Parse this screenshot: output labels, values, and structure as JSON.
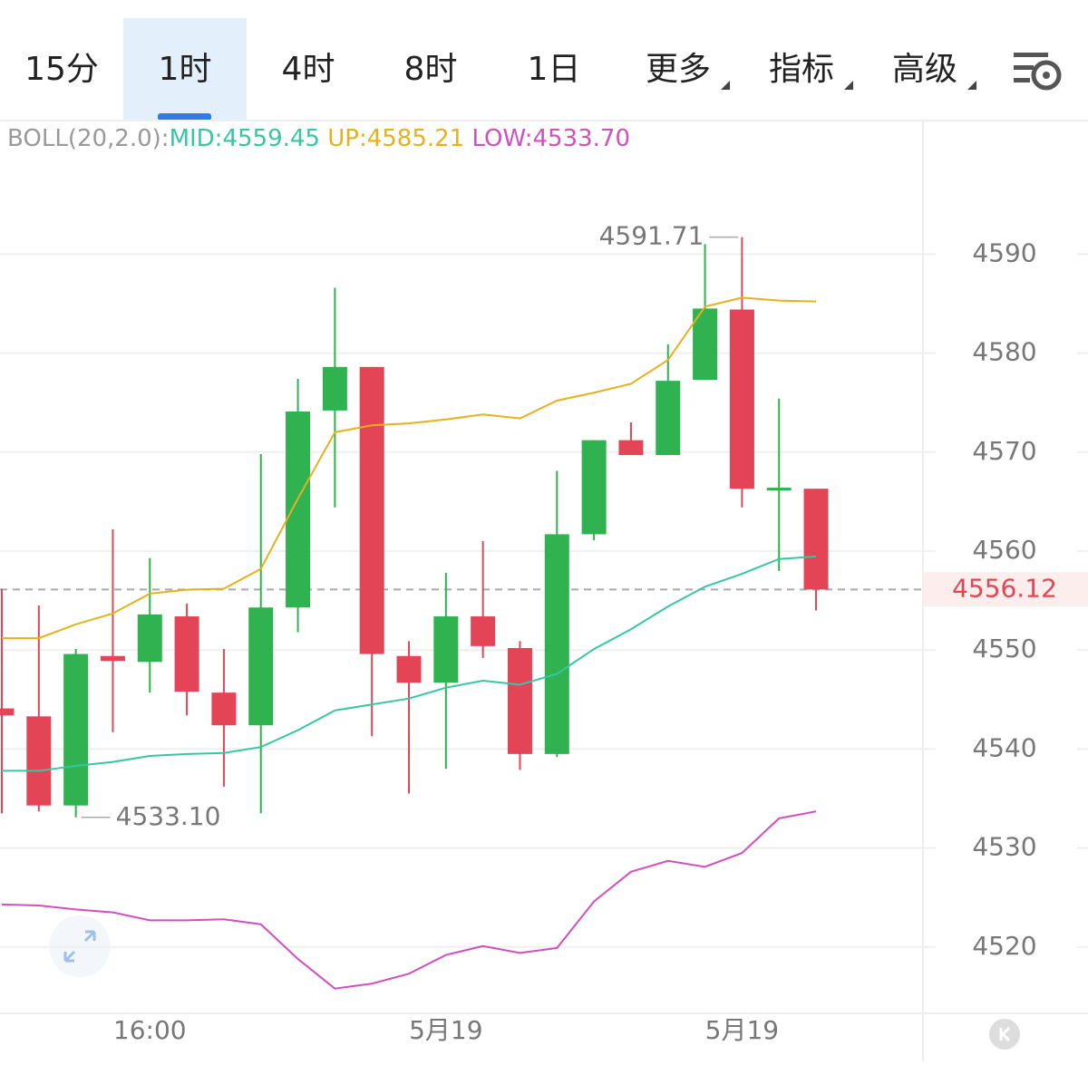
{
  "tabs": [
    "15分",
    "1时",
    "4时",
    "8时",
    "1日"
  ],
  "selected_tab": "1时",
  "menus": [
    "更多",
    "指标",
    "高级"
  ],
  "chart_data": {
    "type": "candlestick",
    "indicator": "BOLL(20,2.0):",
    "categories": [
      null,
      null,
      null,
      null,
      "16:00",
      null,
      null,
      null,
      null,
      null,
      null,
      null,
      "5月19",
      null,
      null,
      null,
      null,
      null,
      null,
      null,
      "5月19",
      null,
      null
    ],
    "open": [
      4544.1,
      4543.3,
      4534.3,
      4549.4,
      4548.8,
      4553.4,
      4545.7,
      4542.4,
      4554.3,
      4574.2,
      4578.6,
      4549.4,
      4546.7,
      4553.4,
      4550.2,
      4539.5,
      4561.7,
      4571.2,
      4569.7,
      4577.3,
      4584.4,
      4566.2,
      4566.3
    ],
    "high": [
      4556.2,
      4554.5,
      4550.1,
      4562.2,
      4559.3,
      4554.7,
      4550.1,
      4569.8,
      4577.4,
      4586.6,
      4578.6,
      4550.9,
      4557.8,
      4561.0,
      4550.9,
      4568.1,
      4571.2,
      4573.0,
      4580.9,
      4591.0,
      4591.71,
      4575.4,
      4566.3
    ],
    "low": [
      4533.5,
      4533.7,
      4533.1,
      4541.7,
      4545.7,
      4543.4,
      4536.2,
      4533.5,
      4551.8,
      4564.4,
      4541.3,
      4535.5,
      4538.0,
      4549.2,
      4537.9,
      4539.2,
      4561.1,
      4569.7,
      4569.7,
      4577.3,
      4564.4,
      4558.0,
      4554.0
    ],
    "close": [
      4543.4,
      4534.3,
      4549.6,
      4548.9,
      4553.6,
      4545.8,
      4542.4,
      4554.3,
      4574.1,
      4578.6,
      4549.6,
      4546.7,
      4553.4,
      4550.4,
      4539.5,
      4561.7,
      4571.2,
      4569.7,
      4577.2,
      4584.5,
      4566.3,
      4566.4,
      4556.12
    ],
    "up_color": "#2fb24f",
    "down_color": "#e34556",
    "series": [
      {
        "name": "MID:4559.45",
        "color": "#37c6a4",
        "values": [
          4537.8,
          4537.8,
          4538.3,
          4538.7,
          4539.3,
          4539.5,
          4539.6,
          4540.2,
          4541.9,
          4543.9,
          4544.5,
          4545.1,
          4546.2,
          4546.9,
          4546.5,
          4547.6,
          4550.1,
          4552.1,
          4554.4,
          4556.4,
          4557.7,
          4559.2,
          4559.45
        ]
      },
      {
        "name": "UP:4585.21",
        "color": "#e6b11c",
        "values": [
          4551.2,
          4551.2,
          4552.6,
          4553.7,
          4555.7,
          4556.1,
          4556.2,
          4558.2,
          4565.3,
          4572.0,
          4572.7,
          4572.9,
          4573.3,
          4573.8,
          4573.4,
          4575.2,
          4576.0,
          4576.9,
          4579.3,
          4584.7,
          4585.6,
          4585.3,
          4585.21
        ]
      },
      {
        "name": "LOW:4533.70",
        "color": "#d24fbf",
        "values": [
          4524.3,
          4524.2,
          4523.8,
          4523.5,
          4522.7,
          4522.7,
          4522.8,
          4522.3,
          4518.8,
          4515.8,
          4516.3,
          4517.3,
          4519.2,
          4520.1,
          4519.4,
          4519.9,
          4524.6,
          4527.6,
          4528.7,
          4528.1,
          4529.5,
          4533.0,
          4533.7
        ]
      }
    ],
    "high_marker": 4591.71,
    "low_marker": {
      "value": 4533.1,
      "label": "4533.10"
    },
    "last_price": 4556.12,
    "ylim": [
      4513.3,
      4603.4
    ],
    "yticks": [
      4520,
      4530,
      4540,
      4550,
      4560,
      4570,
      4580,
      4590
    ],
    "grid": true
  }
}
